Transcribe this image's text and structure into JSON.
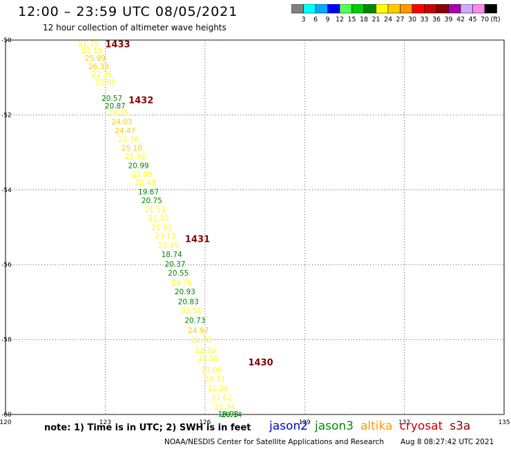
{
  "header": {
    "title": "12:00 – 23:59 UTC 08/05/2021",
    "subtitle": "12 hour collection of altimeter wave heights"
  },
  "legend": {
    "colors": [
      "#808080",
      "#00ffff",
      "#00aaff",
      "#0000ff",
      "#55ff55",
      "#00cc00",
      "#008800",
      "#ffff00",
      "#ffcc00",
      "#ff9900",
      "#ff0000",
      "#cc0000",
      "#880000",
      "#aa00aa",
      "#ccaaff",
      "#ff88ee",
      "#000000"
    ],
    "labels": [
      "3",
      "6",
      "9",
      "12",
      "15",
      "18",
      "21",
      "24",
      "27",
      "30",
      "33",
      "36",
      "39",
      "42",
      "45",
      "70",
      "(ft)"
    ]
  },
  "chart_data": {
    "type": "scatter",
    "title": "12 hour collection of altimeter wave heights",
    "xlabel": "",
    "ylabel": "",
    "xlim": [
      120,
      135
    ],
    "ylim": [
      -60,
      -50
    ],
    "x_ticks": [
      "120",
      "123",
      "126",
      "129",
      "132",
      "135"
    ],
    "y_ticks": [
      "-50",
      "-52",
      "-54",
      "-56",
      "-58",
      "-60"
    ],
    "gridlines": [
      123,
      126,
      129,
      132
    ],
    "swh_points": [
      {
        "lon": 122.5,
        "lat": -50.1,
        "v": "21.75",
        "c": "#ffff00"
      },
      {
        "lon": 122.6,
        "lat": -50.28,
        "v": "22.18",
        "c": "#ffff00"
      },
      {
        "lon": 122.7,
        "lat": -50.48,
        "v": "25.99",
        "c": "#ffcc00"
      },
      {
        "lon": 122.8,
        "lat": -50.7,
        "v": "26.33",
        "c": "#ffcc00"
      },
      {
        "lon": 122.9,
        "lat": -50.9,
        "v": "22.35",
        "c": "#ffff00"
      },
      {
        "lon": 123.0,
        "lat": -51.12,
        "v": "23.06",
        "c": "#ffff00"
      },
      {
        "lon": 123.2,
        "lat": -51.55,
        "v": "20.57",
        "c": "#008800"
      },
      {
        "lon": 123.3,
        "lat": -51.75,
        "v": "20.87",
        "c": "#008800"
      },
      {
        "lon": 123.4,
        "lat": -51.95,
        "v": "23.25",
        "c": "#ffff00"
      },
      {
        "lon": 123.5,
        "lat": -52.18,
        "v": "24.03",
        "c": "#ffcc00"
      },
      {
        "lon": 123.6,
        "lat": -52.42,
        "v": "24.47",
        "c": "#ffcc00"
      },
      {
        "lon": 123.7,
        "lat": -52.65,
        "v": "22.16",
        "c": "#ffff00"
      },
      {
        "lon": 123.8,
        "lat": -52.88,
        "v": "25.10",
        "c": "#ffcc00"
      },
      {
        "lon": 123.9,
        "lat": -53.1,
        "v": "21.92",
        "c": "#ffff00"
      },
      {
        "lon": 124.0,
        "lat": -53.35,
        "v": "20.99",
        "c": "#008800"
      },
      {
        "lon": 124.1,
        "lat": -53.58,
        "v": "22.09",
        "c": "#ffff00"
      },
      {
        "lon": 124.2,
        "lat": -53.8,
        "v": "22.48",
        "c": "#ffff00"
      },
      {
        "lon": 124.3,
        "lat": -54.05,
        "v": "19.67",
        "c": "#008800"
      },
      {
        "lon": 124.4,
        "lat": -54.28,
        "v": "20.75",
        "c": "#008800"
      },
      {
        "lon": 124.5,
        "lat": -54.52,
        "v": "21.53",
        "c": "#ffff00"
      },
      {
        "lon": 124.6,
        "lat": -54.75,
        "v": "21.10",
        "c": "#ffff00"
      },
      {
        "lon": 124.7,
        "lat": -55.0,
        "v": "21.01",
        "c": "#ffff00"
      },
      {
        "lon": 124.8,
        "lat": -55.22,
        "v": "23.13",
        "c": "#ffff00"
      },
      {
        "lon": 124.9,
        "lat": -55.48,
        "v": "23.39",
        "c": "#ffff00"
      },
      {
        "lon": 125.0,
        "lat": -55.72,
        "v": "18.74",
        "c": "#008800"
      },
      {
        "lon": 125.1,
        "lat": -55.98,
        "v": "20.37",
        "c": "#008800"
      },
      {
        "lon": 125.2,
        "lat": -56.22,
        "v": "20.55",
        "c": "#008800"
      },
      {
        "lon": 125.3,
        "lat": -56.48,
        "v": "21.76",
        "c": "#ffff00"
      },
      {
        "lon": 125.4,
        "lat": -56.72,
        "v": "20.93",
        "c": "#008800"
      },
      {
        "lon": 125.5,
        "lat": -56.98,
        "v": "20.83",
        "c": "#008800"
      },
      {
        "lon": 125.6,
        "lat": -57.22,
        "v": "23.51",
        "c": "#ffff00"
      },
      {
        "lon": 125.7,
        "lat": -57.48,
        "v": "20.73",
        "c": "#008800"
      },
      {
        "lon": 125.8,
        "lat": -57.75,
        "v": "24.97",
        "c": "#ffcc00"
      },
      {
        "lon": 125.9,
        "lat": -58.0,
        "v": "22.33",
        "c": "#ffff00"
      },
      {
        "lon": 126.0,
        "lat": -58.28,
        "v": "22.30",
        "c": "#ffff00"
      },
      {
        "lon": 126.1,
        "lat": -58.5,
        "v": "22.38",
        "c": "#ffff00"
      },
      {
        "lon": 126.2,
        "lat": -58.8,
        "v": "23.00",
        "c": "#ffff00"
      },
      {
        "lon": 126.3,
        "lat": -59.05,
        "v": "22.71",
        "c": "#ffff00"
      },
      {
        "lon": 126.4,
        "lat": -59.3,
        "v": "22.26",
        "c": "#ffff00"
      },
      {
        "lon": 126.5,
        "lat": -59.55,
        "v": "23.62",
        "c": "#ffff00"
      },
      {
        "lon": 126.6,
        "lat": -59.8,
        "v": "21.34",
        "c": "#ffff00"
      },
      {
        "lon": 126.7,
        "lat": -59.98,
        "v": "19.93",
        "c": "#008800"
      },
      {
        "lon": 126.8,
        "lat": -60.0,
        "v": "20.14",
        "c": "#008800"
      }
    ],
    "time_labels": [
      {
        "lon": 123.0,
        "lat": -50.1,
        "v": "1433"
      },
      {
        "lon": 123.7,
        "lat": -51.6,
        "v": "1432"
      },
      {
        "lon": 125.4,
        "lat": -55.3,
        "v": "1431"
      },
      {
        "lon": 127.3,
        "lat": -58.6,
        "v": "1430"
      }
    ]
  },
  "notes": {
    "note_text": "note:  1) Time is in UTC;  2) SWH is in feet",
    "satellites": [
      {
        "name": "jason2",
        "color": "#0000cc"
      },
      {
        "name": "jason3",
        "color": "#008800"
      },
      {
        "name": "altika",
        "color": "#ff9900"
      },
      {
        "name": "cryosat",
        "color": "#cc0000"
      },
      {
        "name": "s3a",
        "color": "#880000"
      }
    ]
  },
  "footer": {
    "credit": "NOAA/NESDIS Center for Satellite Applications and Research",
    "timestamp": "Aug  8 08:27:42 UTC 2021"
  }
}
